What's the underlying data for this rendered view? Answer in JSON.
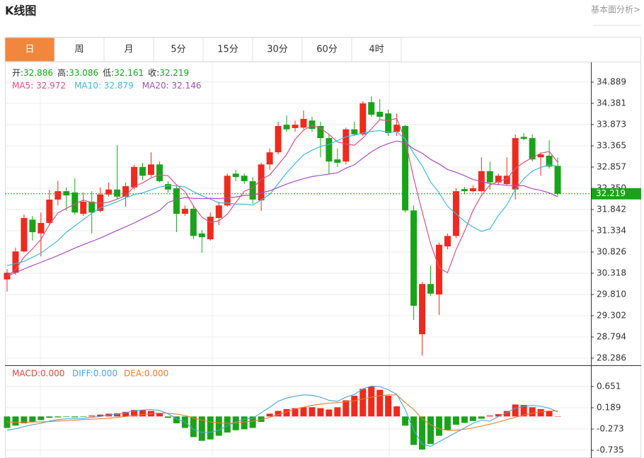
{
  "header": {
    "title": "K线图",
    "link": "基本面分析>"
  },
  "tabs": [
    "日",
    "周",
    "月",
    "5分",
    "15分",
    "30分",
    "60分",
    "4时"
  ],
  "active_tab": 0,
  "chart_data": [
    {
      "type": "candlestick",
      "ohlc_labels": [
        "开:",
        "高:",
        "低:",
        "收:"
      ],
      "candles": {
        "open": [
          30.17,
          30.33,
          30.84,
          31.6,
          31.27,
          31.52,
          32.08,
          32.28,
          32.25,
          31.74,
          32.03,
          31.81,
          32.2,
          32.32,
          32.15,
          32.37,
          32.86,
          32.67,
          32.92,
          32.45,
          32.35,
          31.74,
          31.86,
          31.27,
          31.13,
          31.64,
          31.94,
          32.7,
          32.65,
          32.52,
          32.06,
          32.92,
          33.21,
          33.87,
          33.79,
          33.8,
          33.97,
          33.84,
          33.55,
          33.04,
          32.99,
          33.76,
          33.64,
          34.41,
          34.18,
          34.14,
          33.7,
          33.84,
          31.82,
          28.86,
          30.06,
          29.81,
          30.96,
          31.21,
          32.33,
          32.28,
          32.28,
          32.76,
          32.49,
          32.45,
          32.32,
          33.58,
          33.55,
          33.09,
          33.13,
          32.886
        ],
        "high": [
          30.42,
          30.93,
          31.72,
          31.69,
          31.77,
          32.31,
          32.53,
          32.37,
          32.59,
          32.25,
          32.28,
          32.37,
          32.49,
          33.38,
          32.49,
          32.91,
          32.96,
          33.21,
          32.99,
          32.52,
          32.42,
          31.94,
          31.94,
          31.35,
          31.77,
          32.03,
          32.7,
          32.79,
          32.7,
          32.62,
          32.96,
          33.3,
          33.94,
          34.09,
          33.97,
          34.21,
          34.06,
          33.94,
          33.64,
          33.3,
          33.8,
          33.94,
          34.43,
          34.55,
          34.48,
          34.23,
          34.14,
          33.87,
          31.94,
          30.11,
          30.5,
          31.05,
          31.27,
          32.35,
          32.38,
          32.42,
          33.09,
          32.99,
          32.7,
          33.09,
          33.64,
          33.67,
          33.64,
          33.21,
          33.5,
          33.086
        ],
        "low": [
          29.88,
          30.28,
          30.81,
          31.1,
          30.72,
          31.47,
          31.94,
          31.81,
          31.72,
          31.69,
          31.27,
          31.77,
          32.15,
          32.08,
          31.91,
          32.32,
          32.54,
          32.62,
          32.49,
          32.25,
          31.3,
          31.69,
          31.13,
          30.81,
          31.1,
          31.47,
          31.91,
          32.52,
          32.45,
          31.98,
          31.81,
          32.79,
          33.16,
          33.7,
          33.7,
          33.76,
          33.7,
          33.09,
          32.69,
          32.86,
          32.92,
          33.6,
          33.6,
          34.06,
          33.97,
          33.6,
          33.6,
          31.77,
          29.2,
          28.35,
          29.78,
          29.32,
          30.89,
          31.16,
          32.21,
          32.25,
          32.25,
          32.32,
          32.42,
          32.42,
          32.08,
          33.5,
          32.99,
          32.65,
          32.82,
          32.161
        ],
        "close": [
          30.33,
          30.84,
          31.64,
          31.3,
          31.52,
          32.08,
          32.28,
          32.18,
          31.77,
          32.03,
          31.77,
          32.2,
          32.32,
          32.15,
          32.4,
          32.86,
          32.65,
          32.92,
          32.52,
          32.32,
          31.74,
          31.86,
          31.21,
          31.18,
          31.67,
          31.94,
          32.65,
          32.62,
          32.52,
          32.08,
          32.92,
          33.21,
          33.84,
          33.76,
          33.87,
          34.01,
          33.77,
          33.55,
          32.99,
          32.96,
          33.76,
          33.64,
          34.38,
          34.11,
          34.06,
          33.67,
          33.87,
          31.82,
          29.54,
          30.06,
          29.83,
          31.0,
          31.21,
          32.28,
          32.28,
          32.35,
          32.76,
          32.49,
          32.65,
          32.65,
          33.55,
          33.53,
          33.04,
          33.16,
          32.87,
          32.219
        ]
      },
      "up_color": "#ee2a1f",
      "down_color": "#1aa31a",
      "legend_separator": ": ",
      "series": [
        {
          "name": "MA5",
          "color": "#e0507f",
          "values": [
            30.25,
            30.4,
            30.7,
            30.9,
            31.13,
            31.48,
            31.76,
            31.87,
            31.97,
            32.07,
            32.01,
            31.99,
            32.02,
            32.09,
            32.17,
            32.39,
            32.48,
            32.6,
            32.67,
            32.65,
            32.43,
            32.27,
            31.93,
            31.66,
            31.53,
            31.57,
            31.73,
            32.01,
            32.28,
            32.36,
            32.56,
            32.67,
            32.91,
            33.16,
            33.52,
            33.74,
            33.85,
            33.79,
            33.64,
            33.46,
            33.41,
            33.38,
            33.55,
            33.77,
            33.99,
            33.97,
            34.02,
            33.51,
            32.59,
            31.79,
            31.02,
            30.45,
            30.33,
            30.88,
            31.32,
            31.82,
            32.18,
            32.43,
            32.51,
            32.58,
            32.82,
            32.97,
            33.08,
            33.19,
            33.23,
            32.972
          ]
        },
        {
          "name": "MA10",
          "color": "#3dbbdc",
          "values": [
            30.5,
            30.55,
            30.6,
            30.7,
            30.8,
            30.95,
            31.1,
            31.3,
            31.45,
            31.6,
            31.75,
            31.88,
            31.95,
            32.03,
            32.12,
            32.2,
            32.24,
            32.31,
            32.38,
            32.41,
            32.41,
            32.38,
            32.27,
            32.17,
            32.09,
            32.0,
            32.0,
            31.97,
            31.97,
            31.95,
            32.07,
            32.2,
            32.46,
            32.72,
            32.94,
            33.15,
            33.26,
            33.35,
            33.4,
            33.49,
            33.58,
            33.62,
            33.67,
            33.71,
            33.73,
            33.69,
            33.7,
            33.53,
            33.18,
            32.89,
            32.5,
            32.24,
            31.92,
            31.74,
            31.56,
            31.42,
            31.32,
            31.38,
            31.7,
            31.95,
            32.32,
            32.58,
            32.76,
            32.85,
            32.91,
            32.879
          ]
        },
        {
          "name": "MA20",
          "color": "#a84fc2",
          "values": [
            30.25,
            30.33,
            30.42,
            30.5,
            30.58,
            30.66,
            30.74,
            30.83,
            30.92,
            31.0,
            31.08,
            31.16,
            31.25,
            31.34,
            31.43,
            31.52,
            31.62,
            31.72,
            31.82,
            32.01,
            32.08,
            32.13,
            32.11,
            32.1,
            32.11,
            32.1,
            32.12,
            32.14,
            32.18,
            32.18,
            32.24,
            32.29,
            32.37,
            32.45,
            32.52,
            32.58,
            32.63,
            32.66,
            32.69,
            32.72,
            32.83,
            32.91,
            33.07,
            33.22,
            33.34,
            33.42,
            33.48,
            33.44,
            33.29,
            33.19,
            33.04,
            32.93,
            32.8,
            32.73,
            32.65,
            32.56,
            32.51,
            32.46,
            32.44,
            32.42,
            32.41,
            32.41,
            32.34,
            32.3,
            32.24,
            32.146
          ]
        }
      ],
      "ylim": [
        28.117,
        35.363
      ],
      "yticks": [
        34.889,
        34.381,
        33.873,
        33.365,
        32.857,
        {
          "value": 32.35,
          "label": "32.350"
        },
        31.842,
        31.334,
        30.826,
        30.318,
        {
          "value": 29.81,
          "label": "29.810"
        },
        29.302,
        28.794,
        28.286
      ],
      "grid": true,
      "last_price_color": "#1aa31a"
    },
    {
      "type": "macd",
      "legend_labels": [
        "MACD:0.000",
        "DIFF:0.000",
        "DEA:0.000"
      ],
      "up_color": "#ee2a1f",
      "down_color": "#1aa31a",
      "histogram": {
        "color": "#e0463a",
        "values": [
          -0.25,
          -0.2,
          -0.15,
          -0.12,
          -0.08,
          -0.03,
          -0.02,
          -0.01,
          -0.02,
          -0.01,
          0.02,
          0.04,
          0.06,
          0.07,
          0.1,
          0.14,
          0.14,
          0.12,
          0.08,
          -0.03,
          -0.15,
          -0.25,
          -0.45,
          -0.53,
          -0.5,
          -0.42,
          -0.35,
          -0.3,
          -0.28,
          -0.25,
          -0.12,
          0.06,
          0.12,
          0.16,
          0.18,
          0.2,
          0.2,
          0.18,
          0.15,
          0.2,
          0.35,
          0.45,
          0.6,
          0.65,
          0.58,
          0.45,
          0.22,
          -0.2,
          -0.62,
          -0.72,
          -0.6,
          -0.42,
          -0.3,
          -0.18,
          -0.14,
          -0.1,
          -0.05,
          0.02,
          0.05,
          0.12,
          0.26,
          0.25,
          0.2,
          0.16,
          0.12,
          0
        ]
      },
      "series": [
        {
          "color": "#4aa3df",
          "values": [
            -0.3,
            -0.27,
            -0.22,
            -0.18,
            -0.15,
            -0.1,
            -0.07,
            -0.05,
            -0.05,
            -0.04,
            -0.02,
            0.0,
            0.03,
            0.05,
            0.08,
            0.12,
            0.14,
            0.15,
            0.13,
            0.06,
            -0.05,
            -0.12,
            -0.28,
            -0.35,
            -0.34,
            -0.3,
            -0.2,
            -0.12,
            -0.06,
            -0.04,
            0.08,
            0.2,
            0.33,
            0.4,
            0.44,
            0.47,
            0.46,
            0.42,
            0.35,
            0.33,
            0.42,
            0.48,
            0.6,
            0.66,
            0.65,
            0.58,
            0.48,
            0.15,
            -0.3,
            -0.6,
            -0.65,
            -0.55,
            -0.45,
            -0.35,
            -0.25,
            -0.15,
            -0.08,
            -0.1,
            0.0,
            0.08,
            0.18,
            0.22,
            0.24,
            0.22,
            0.18,
            0.1
          ]
        },
        {
          "color": "#ec7a2a",
          "values": [
            -0.12,
            -0.13,
            -0.13,
            -0.12,
            -0.12,
            -0.11,
            -0.1,
            -0.09,
            -0.08,
            -0.07,
            -0.06,
            -0.05,
            -0.04,
            -0.02,
            0.0,
            0.02,
            0.04,
            0.06,
            0.07,
            0.07,
            0.05,
            0.02,
            -0.03,
            -0.08,
            -0.12,
            -0.14,
            -0.15,
            -0.14,
            -0.12,
            -0.1,
            -0.07,
            -0.02,
            0.04,
            0.1,
            0.16,
            0.2,
            0.24,
            0.27,
            0.29,
            0.3,
            0.32,
            0.34,
            0.38,
            0.42,
            0.45,
            0.47,
            0.47,
            0.3,
            0.15,
            -0.05,
            -0.18,
            -0.27,
            -0.3,
            -0.3,
            -0.28,
            -0.25,
            -0.21,
            -0.17,
            -0.12,
            -0.07,
            -0.02,
            0.03,
            0.07,
            0.1,
            0.12,
            0.12
          ]
        }
      ],
      "ylim": [
        -0.904,
        1.113
      ],
      "yticks": [
        0.651,
        0.189,
        -0.273,
        -0.735
      ]
    }
  ]
}
